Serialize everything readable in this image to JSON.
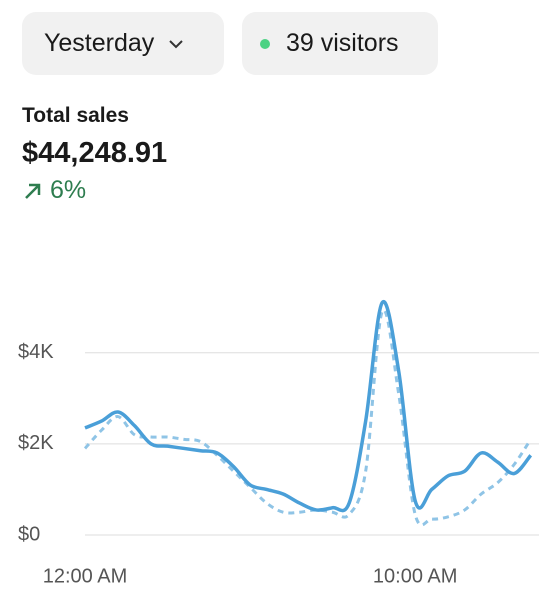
{
  "header": {
    "period_button": "Yesterday",
    "visitors_button": "39 visitors"
  },
  "summary": {
    "label": "Total sales",
    "value": "$44,248.91",
    "change": "6%"
  },
  "chart_data": {
    "type": "line",
    "x": [
      0,
      0.5,
      1,
      1.5,
      2,
      2.5,
      3,
      3.5,
      4,
      4.5,
      5,
      5.5,
      6,
      6.5,
      7,
      7.5,
      8,
      8.5,
      9,
      9.5,
      10,
      10.5,
      11,
      11.5,
      12,
      12.5,
      13,
      13.5
    ],
    "series": [
      {
        "color": "#4a9fd8",
        "dashed": false,
        "values": [
          2350,
          2500,
          2700,
          2400,
          2000,
          1950,
          1900,
          1850,
          1800,
          1500,
          1100,
          1000,
          900,
          700,
          550,
          600,
          700,
          2500,
          5100,
          3600,
          750,
          1000,
          1300,
          1400,
          1800,
          1600,
          1350,
          1750
        ]
      },
      {
        "color": "#8fc4e6",
        "dashed": true,
        "values": [
          1900,
          2300,
          2600,
          2200,
          2150,
          2150,
          2100,
          2050,
          1750,
          1400,
          1050,
          700,
          500,
          500,
          550,
          500,
          450,
          1400,
          4900,
          3100,
          450,
          350,
          400,
          550,
          900,
          1150,
          1550,
          2100
        ]
      }
    ],
    "xlim": [
      0,
      13.75
    ],
    "xticks": [
      {
        "value": 0,
        "label": "12:00 AM"
      },
      {
        "value": 10,
        "label": "10:00 AM"
      }
    ],
    "ylim": [
      0,
      5400
    ],
    "yticks": [
      {
        "value": 0,
        "label": "$0"
      },
      {
        "value": 2000,
        "label": "$2K"
      },
      {
        "value": 4000,
        "label": "$4K"
      }
    ],
    "grid": true
  }
}
